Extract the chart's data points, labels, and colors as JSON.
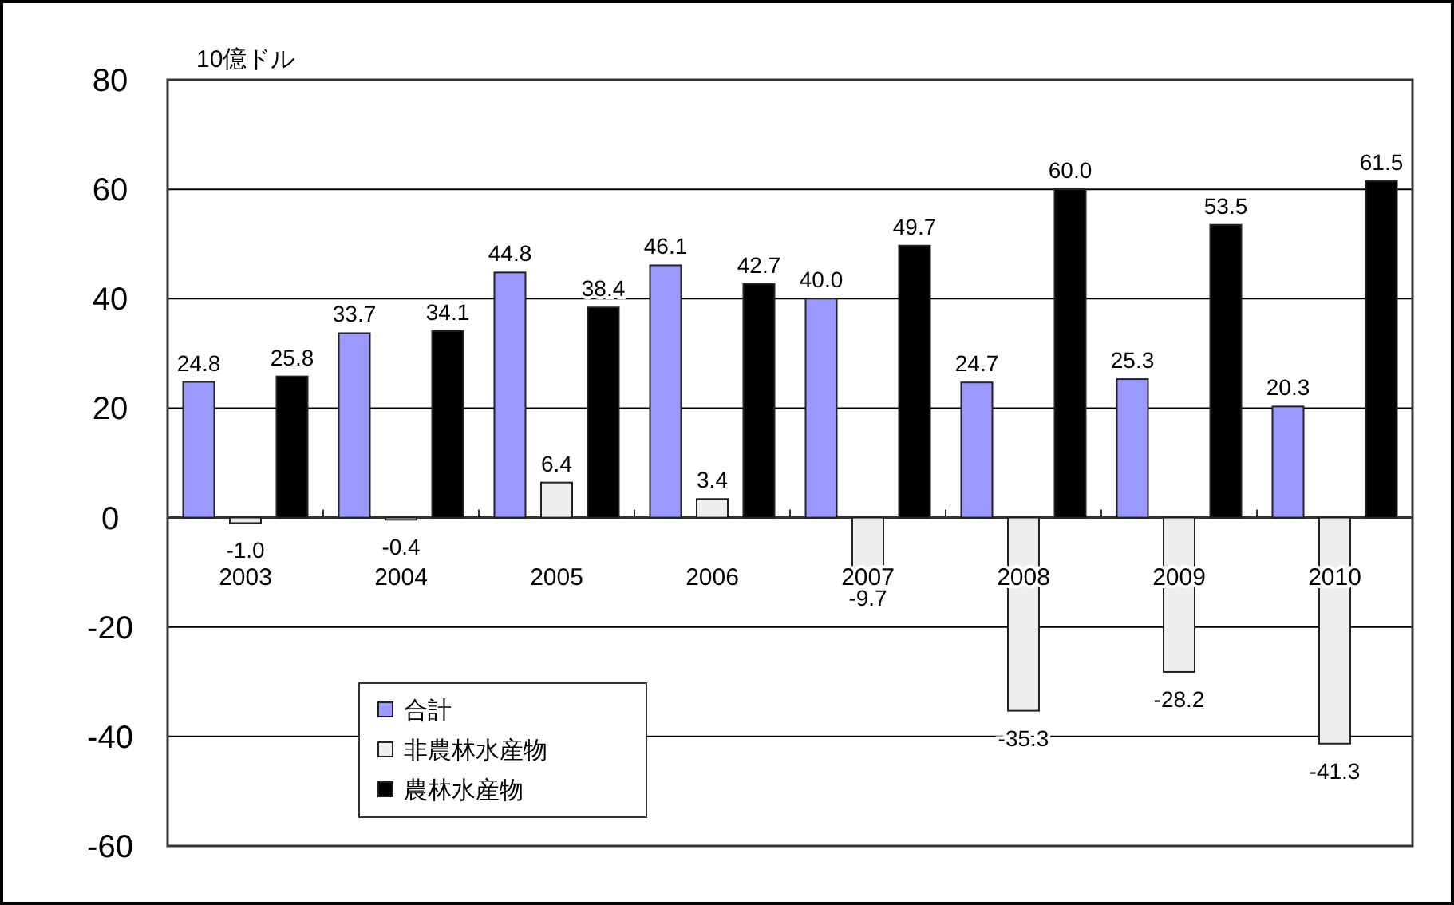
{
  "chart_data": {
    "type": "bar",
    "ylabel": "10億ドル",
    "categories": [
      "2003",
      "2004",
      "2005",
      "2006",
      "2007",
      "2008",
      "2009",
      "2010"
    ],
    "series": [
      {
        "name": "合計",
        "color": "#9999ff",
        "values": [
          24.8,
          33.7,
          44.8,
          46.1,
          40.0,
          24.7,
          25.3,
          20.3
        ],
        "value_labels": [
          "24.8",
          "33.7",
          "44.8",
          "46.1",
          "40.0",
          "24.7",
          "25.3",
          "20.3"
        ]
      },
      {
        "name": "非農林水産物",
        "color": "#eeeeee",
        "values": [
          -1.0,
          -0.4,
          6.4,
          3.4,
          -9.7,
          -35.3,
          -28.2,
          -41.3
        ],
        "value_labels": [
          "-1.0",
          "-0.4",
          "6.4",
          "3.4",
          "-9.7",
          "-35.3",
          "-28.2",
          "-41.3"
        ]
      },
      {
        "name": "農林水産物",
        "color": "#000000",
        "values": [
          25.8,
          34.1,
          38.4,
          42.7,
          49.7,
          60.0,
          53.5,
          61.5
        ],
        "value_labels": [
          "25.8",
          "34.1",
          "38.4",
          "42.7",
          "49.7",
          "60.0",
          "53.5",
          "61.5"
        ]
      }
    ],
    "ylim": [
      -60,
      80
    ],
    "yticks": [
      -60,
      -40,
      -20,
      0,
      20,
      40,
      60,
      80
    ],
    "grid": "y",
    "legend": "bottom left"
  }
}
